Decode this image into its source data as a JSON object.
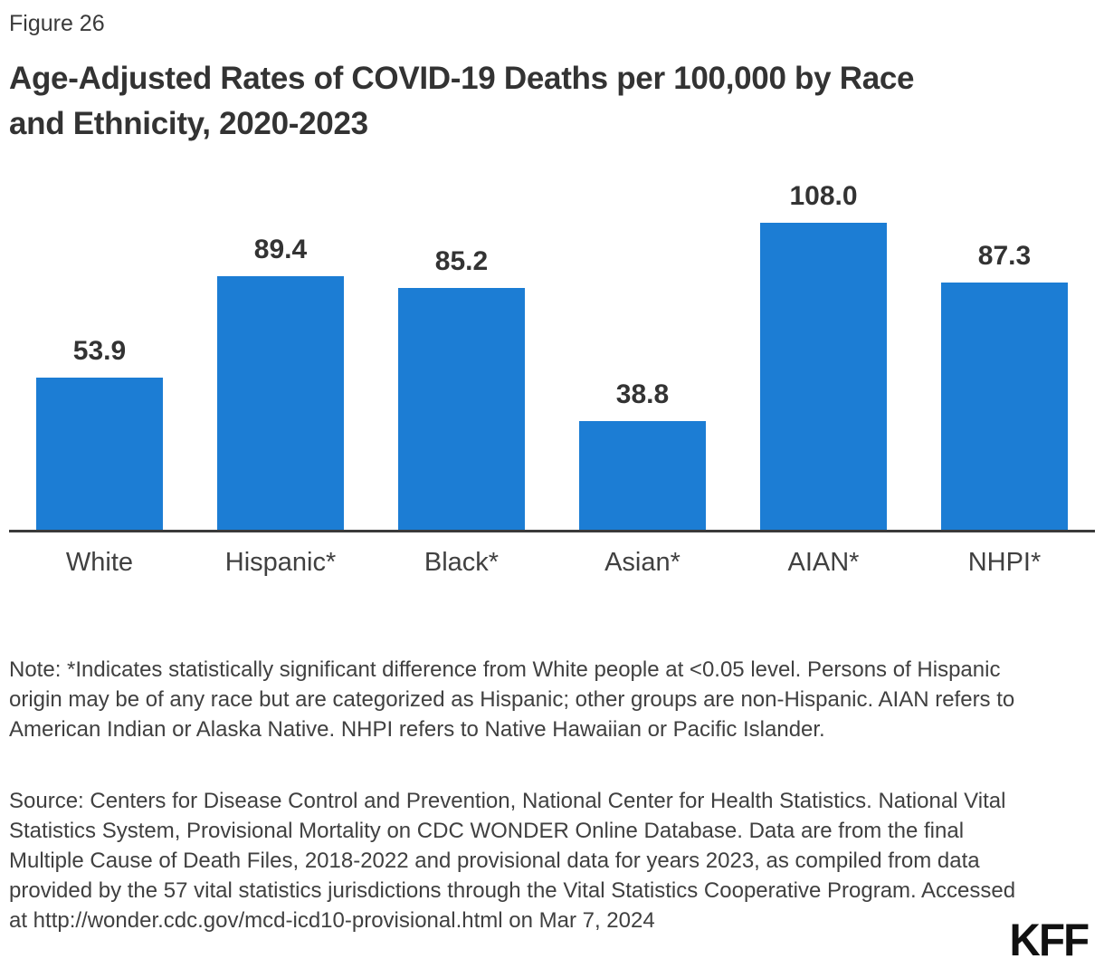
{
  "figure_label": "Figure 26",
  "title_lines": [
    "Age-Adjusted Rates of COVID-19 Deaths per 100,000 by Race",
    "and Ethnicity, 2020-2023"
  ],
  "chart_data": {
    "type": "bar",
    "title": "Age-Adjusted Rates of COVID-19 Deaths per 100,000 by Race and Ethnicity, 2020-2023",
    "categories": [
      "White",
      "Hispanic*",
      "Black*",
      "Asian*",
      "AIAN*",
      "NHPI*"
    ],
    "values": [
      53.9,
      89.4,
      85.2,
      38.8,
      108.0,
      87.3
    ],
    "value_labels": [
      "53.9",
      "89.4",
      "85.2",
      "38.8",
      "108.0",
      "87.3"
    ],
    "xlabel": "",
    "ylabel": "",
    "ylim": [
      0,
      125
    ],
    "grid": false,
    "legend": false,
    "y_axis_visible": false,
    "bar_color": "#1C7DD4",
    "axis_color": "#3A3A3A",
    "label_color": "#333333"
  },
  "note": "Note: *Indicates statistically significant difference from White people at <0.05 level. Persons of Hispanic origin may be of any race but are categorized as Hispanic; other groups are non-Hispanic. AIAN refers to American Indian or Alaska Native. NHPI refers to Native Hawaiian or Pacific Islander.",
  "source": "Source: Centers for Disease Control and Prevention, National Center for Health Statistics. National Vital Statistics System, Provisional Mortality on CDC WONDER Online Database. Data are from the final Multiple Cause of Death Files, 2018-2022 and provisional data for years 2023, as compiled from data provided by the 57 vital statistics jurisdictions through the Vital Statistics Cooperative Program. Accessed at http://wonder.cdc.gov/mcd-icd10-provisional.html on Mar 7, 2024",
  "logo_text": "KFF",
  "colors": {
    "bar": "#1C7DD4",
    "axis": "#3A3A3A",
    "title_text": "#333333",
    "body_text": "#404040",
    "background": "#FFFFFF",
    "logo": "#111111"
  }
}
